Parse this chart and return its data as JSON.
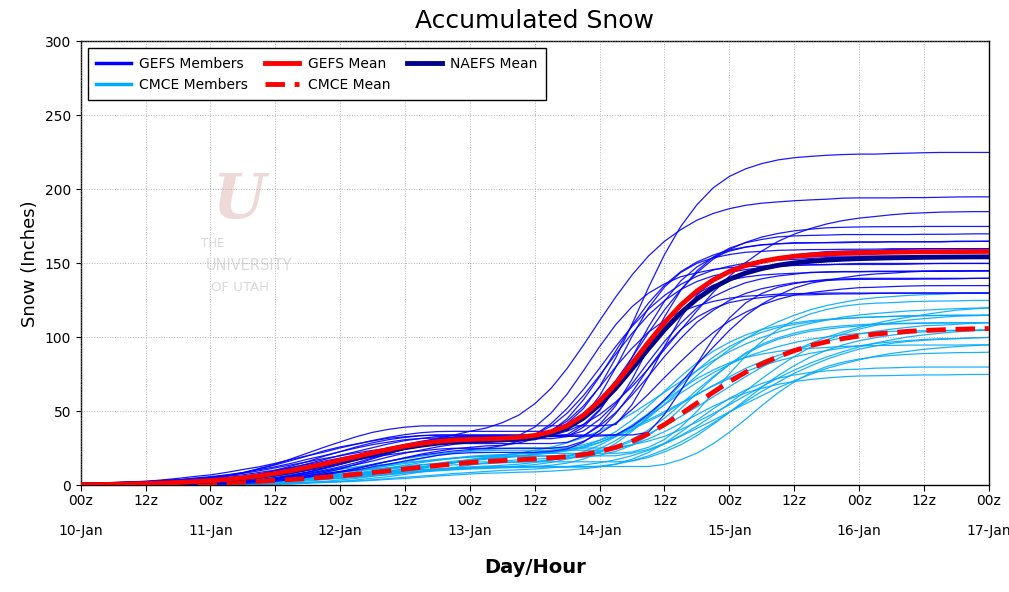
{
  "title": "Accumulated Snow",
  "xlabel": "Day/Hour",
  "ylabel": "Snow (Inches)",
  "ylim": [
    0,
    300
  ],
  "background_color": "#ffffff",
  "grid_color": "#888888",
  "tick_labels_top": [
    "00z",
    "12z",
    "00z",
    "12z",
    "00z",
    "12z",
    "00z",
    "12z",
    "00z",
    "12z",
    "00z",
    "12z",
    "00z",
    "12z",
    "00z"
  ],
  "tick_labels_bottom": [
    "10-Jan",
    "",
    "11-Jan",
    "",
    "12-Jan",
    "",
    "13-Jan",
    "",
    "14-Jan",
    "",
    "15-Jan",
    "",
    "16-Jan",
    "",
    "17-Jan"
  ],
  "gefs_color": "#0000ff",
  "cmce_color": "#00aaff",
  "gefs_mean_color": "#ff0000",
  "cmce_mean_color": "#ff0000",
  "naefs_mean_color": "#00008b",
  "n_gefs_members": 21,
  "n_cmce_members": 20,
  "title_fontsize": 18,
  "axis_label_fontsize": 13,
  "tick_fontsize": 10,
  "legend_fontsize": 10
}
